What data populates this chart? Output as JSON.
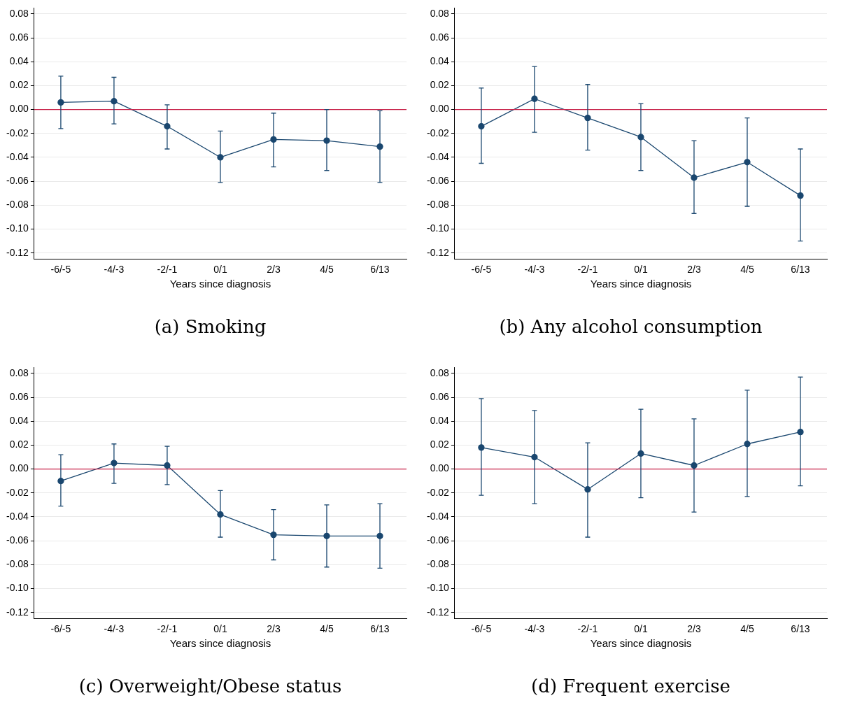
{
  "chart_data": [
    {
      "type": "line",
      "title": "(a) Smoking",
      "xlabel": "Years since diagnosis",
      "categories": [
        "-6/-5",
        "-4/-3",
        "-2/-1",
        "0/1",
        "2/3",
        "4/5",
        "6/13"
      ],
      "series": [
        {
          "color": "#1a476f",
          "values": [
            0.006,
            0.007,
            -0.014,
            -0.04,
            -0.025,
            -0.026,
            -0.031
          ],
          "errors": [
            [
              -0.016,
              0.028
            ],
            [
              -0.012,
              0.027
            ],
            [
              -0.033,
              0.004
            ],
            [
              -0.061,
              -0.018
            ],
            [
              -0.048,
              -0.003
            ],
            [
              -0.051,
              0.0
            ],
            [
              -0.061,
              -0.001
            ]
          ]
        }
      ],
      "ylim": [
        -0.125,
        0.085
      ],
      "yticks": [
        {
          "value": -0.12,
          "label": "-0.12"
        },
        {
          "value": -0.1,
          "label": "-0.10"
        },
        {
          "value": -0.08,
          "label": "-0.08"
        },
        {
          "value": -0.06,
          "label": "-0.06"
        },
        {
          "value": -0.04,
          "label": "-0.04"
        },
        {
          "value": -0.02,
          "label": "-0.02"
        },
        {
          "value": 0,
          "label": "0.00"
        },
        {
          "value": 0.02,
          "label": "0.02"
        },
        {
          "value": 0.04,
          "label": "0.04"
        },
        {
          "value": 0.06,
          "label": "0.06"
        },
        {
          "value": 0.08,
          "label": "0.08"
        }
      ],
      "ref_lines": [
        {
          "axis": "y",
          "value": 0,
          "color": "#c8234a"
        }
      ],
      "grid": "y",
      "legend": false,
      "marker": "circle",
      "line_style": "solid"
    },
    {
      "type": "line",
      "title": "(b) Any alcohol consumption",
      "xlabel": "Years since diagnosis",
      "categories": [
        "-6/-5",
        "-4/-3",
        "-2/-1",
        "0/1",
        "2/3",
        "4/5",
        "6/13"
      ],
      "series": [
        {
          "color": "#1a476f",
          "values": [
            -0.014,
            0.009,
            -0.007,
            -0.023,
            -0.057,
            -0.044,
            -0.072
          ],
          "errors": [
            [
              -0.045,
              0.018
            ],
            [
              -0.019,
              0.036
            ],
            [
              -0.034,
              0.021
            ],
            [
              -0.051,
              0.005
            ],
            [
              -0.087,
              -0.026
            ],
            [
              -0.081,
              -0.007
            ],
            [
              -0.11,
              -0.033
            ]
          ]
        }
      ],
      "ylim": [
        -0.125,
        0.085
      ],
      "yticks": [
        {
          "value": -0.12,
          "label": "-0.12"
        },
        {
          "value": -0.1,
          "label": "-0.10"
        },
        {
          "value": -0.08,
          "label": "-0.08"
        },
        {
          "value": -0.06,
          "label": "-0.06"
        },
        {
          "value": -0.04,
          "label": "-0.04"
        },
        {
          "value": -0.02,
          "label": "-0.02"
        },
        {
          "value": 0,
          "label": "0.00"
        },
        {
          "value": 0.02,
          "label": "0.02"
        },
        {
          "value": 0.04,
          "label": "0.04"
        },
        {
          "value": 0.06,
          "label": "0.06"
        },
        {
          "value": 0.08,
          "label": "0.08"
        }
      ],
      "ref_lines": [
        {
          "axis": "y",
          "value": 0,
          "color": "#c8234a"
        }
      ],
      "grid": "y",
      "legend": false,
      "marker": "circle",
      "line_style": "solid"
    },
    {
      "type": "line",
      "title": "(c) Overweight/Obese status",
      "xlabel": "Years since diagnosis",
      "categories": [
        "-6/-5",
        "-4/-3",
        "-2/-1",
        "0/1",
        "2/3",
        "4/5",
        "6/13"
      ],
      "series": [
        {
          "color": "#1a476f",
          "values": [
            -0.01,
            0.005,
            0.003,
            -0.038,
            -0.055,
            -0.056,
            -0.056
          ],
          "errors": [
            [
              -0.031,
              0.012
            ],
            [
              -0.012,
              0.021
            ],
            [
              -0.013,
              0.019
            ],
            [
              -0.057,
              -0.018
            ],
            [
              -0.076,
              -0.034
            ],
            [
              -0.082,
              -0.03
            ],
            [
              -0.083,
              -0.029
            ]
          ]
        }
      ],
      "ylim": [
        -0.125,
        0.085
      ],
      "yticks": [
        {
          "value": -0.12,
          "label": "-0.12"
        },
        {
          "value": -0.1,
          "label": "-0.10"
        },
        {
          "value": -0.08,
          "label": "-0.08"
        },
        {
          "value": -0.06,
          "label": "-0.06"
        },
        {
          "value": -0.04,
          "label": "-0.04"
        },
        {
          "value": -0.02,
          "label": "-0.02"
        },
        {
          "value": 0,
          "label": "0.00"
        },
        {
          "value": 0.02,
          "label": "0.02"
        },
        {
          "value": 0.04,
          "label": "0.04"
        },
        {
          "value": 0.06,
          "label": "0.06"
        },
        {
          "value": 0.08,
          "label": "0.08"
        }
      ],
      "ref_lines": [
        {
          "axis": "y",
          "value": 0,
          "color": "#c8234a"
        }
      ],
      "grid": "y",
      "legend": false,
      "marker": "circle",
      "line_style": "solid"
    },
    {
      "type": "line",
      "title": "(d) Frequent exercise",
      "xlabel": "Years since diagnosis",
      "categories": [
        "-6/-5",
        "-4/-3",
        "-2/-1",
        "0/1",
        "2/3",
        "4/5",
        "6/13"
      ],
      "series": [
        {
          "color": "#1a476f",
          "values": [
            0.018,
            0.01,
            -0.017,
            0.013,
            0.003,
            0.021,
            0.031
          ],
          "errors": [
            [
              -0.022,
              0.059
            ],
            [
              -0.029,
              0.049
            ],
            [
              -0.057,
              0.022
            ],
            [
              -0.024,
              0.05
            ],
            [
              -0.036,
              0.042
            ],
            [
              -0.023,
              0.066
            ],
            [
              -0.014,
              0.077
            ]
          ]
        }
      ],
      "ylim": [
        -0.125,
        0.085
      ],
      "yticks": [
        {
          "value": -0.12,
          "label": "-0.12"
        },
        {
          "value": -0.1,
          "label": "-0.10"
        },
        {
          "value": -0.08,
          "label": "-0.08"
        },
        {
          "value": -0.06,
          "label": "-0.06"
        },
        {
          "value": -0.04,
          "label": "-0.04"
        },
        {
          "value": -0.02,
          "label": "-0.02"
        },
        {
          "value": 0,
          "label": "0.00"
        },
        {
          "value": 0.02,
          "label": "0.02"
        },
        {
          "value": 0.04,
          "label": "0.04"
        },
        {
          "value": 0.06,
          "label": "0.06"
        },
        {
          "value": 0.08,
          "label": "0.08"
        }
      ],
      "ref_lines": [
        {
          "axis": "y",
          "value": 0,
          "color": "#c8234a"
        }
      ],
      "grid": "y",
      "legend": false,
      "marker": "circle",
      "line_style": "solid"
    }
  ]
}
